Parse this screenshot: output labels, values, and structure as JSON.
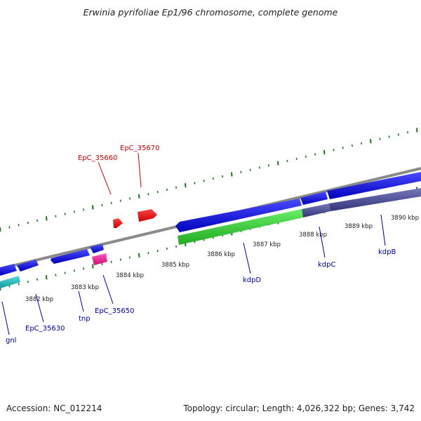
{
  "title": "Erwinia pyrifoliae Ep1/96 chromosome, complete genome",
  "footer": {
    "accession": "Accession: NC_012214",
    "summary": "Topology: circular; Length: 4,026,322 bp; Genes: 3,742"
  },
  "colors": {
    "backbone": "#8a8a8a",
    "tick": "#1a7a1a",
    "gene_forward": "#ee1111",
    "gene_reverse": "#1111dd",
    "cds_green": "#33cc33",
    "cds_purple": "#555599",
    "cds_cyan": "#22bbcc",
    "cds_pink": "#ee2299",
    "label_top": "#cc0000",
    "label_bottom": "#0000aa"
  },
  "scale_labels": [
    "3882 kbp",
    "3883 kbp",
    "3884 kbp",
    "3885 kbp",
    "3886 kbp",
    "3887 kbp",
    "3888 kbp",
    "3889 kbp",
    "3890 kbp"
  ],
  "gene_labels_top": [
    "EpC_35660",
    "EpC_35670"
  ],
  "gene_labels_bottom": [
    "gnl",
    "EpC_35630",
    "tnp",
    "EpC_35650",
    "kdpD",
    "kdpC",
    "kdpB"
  ]
}
